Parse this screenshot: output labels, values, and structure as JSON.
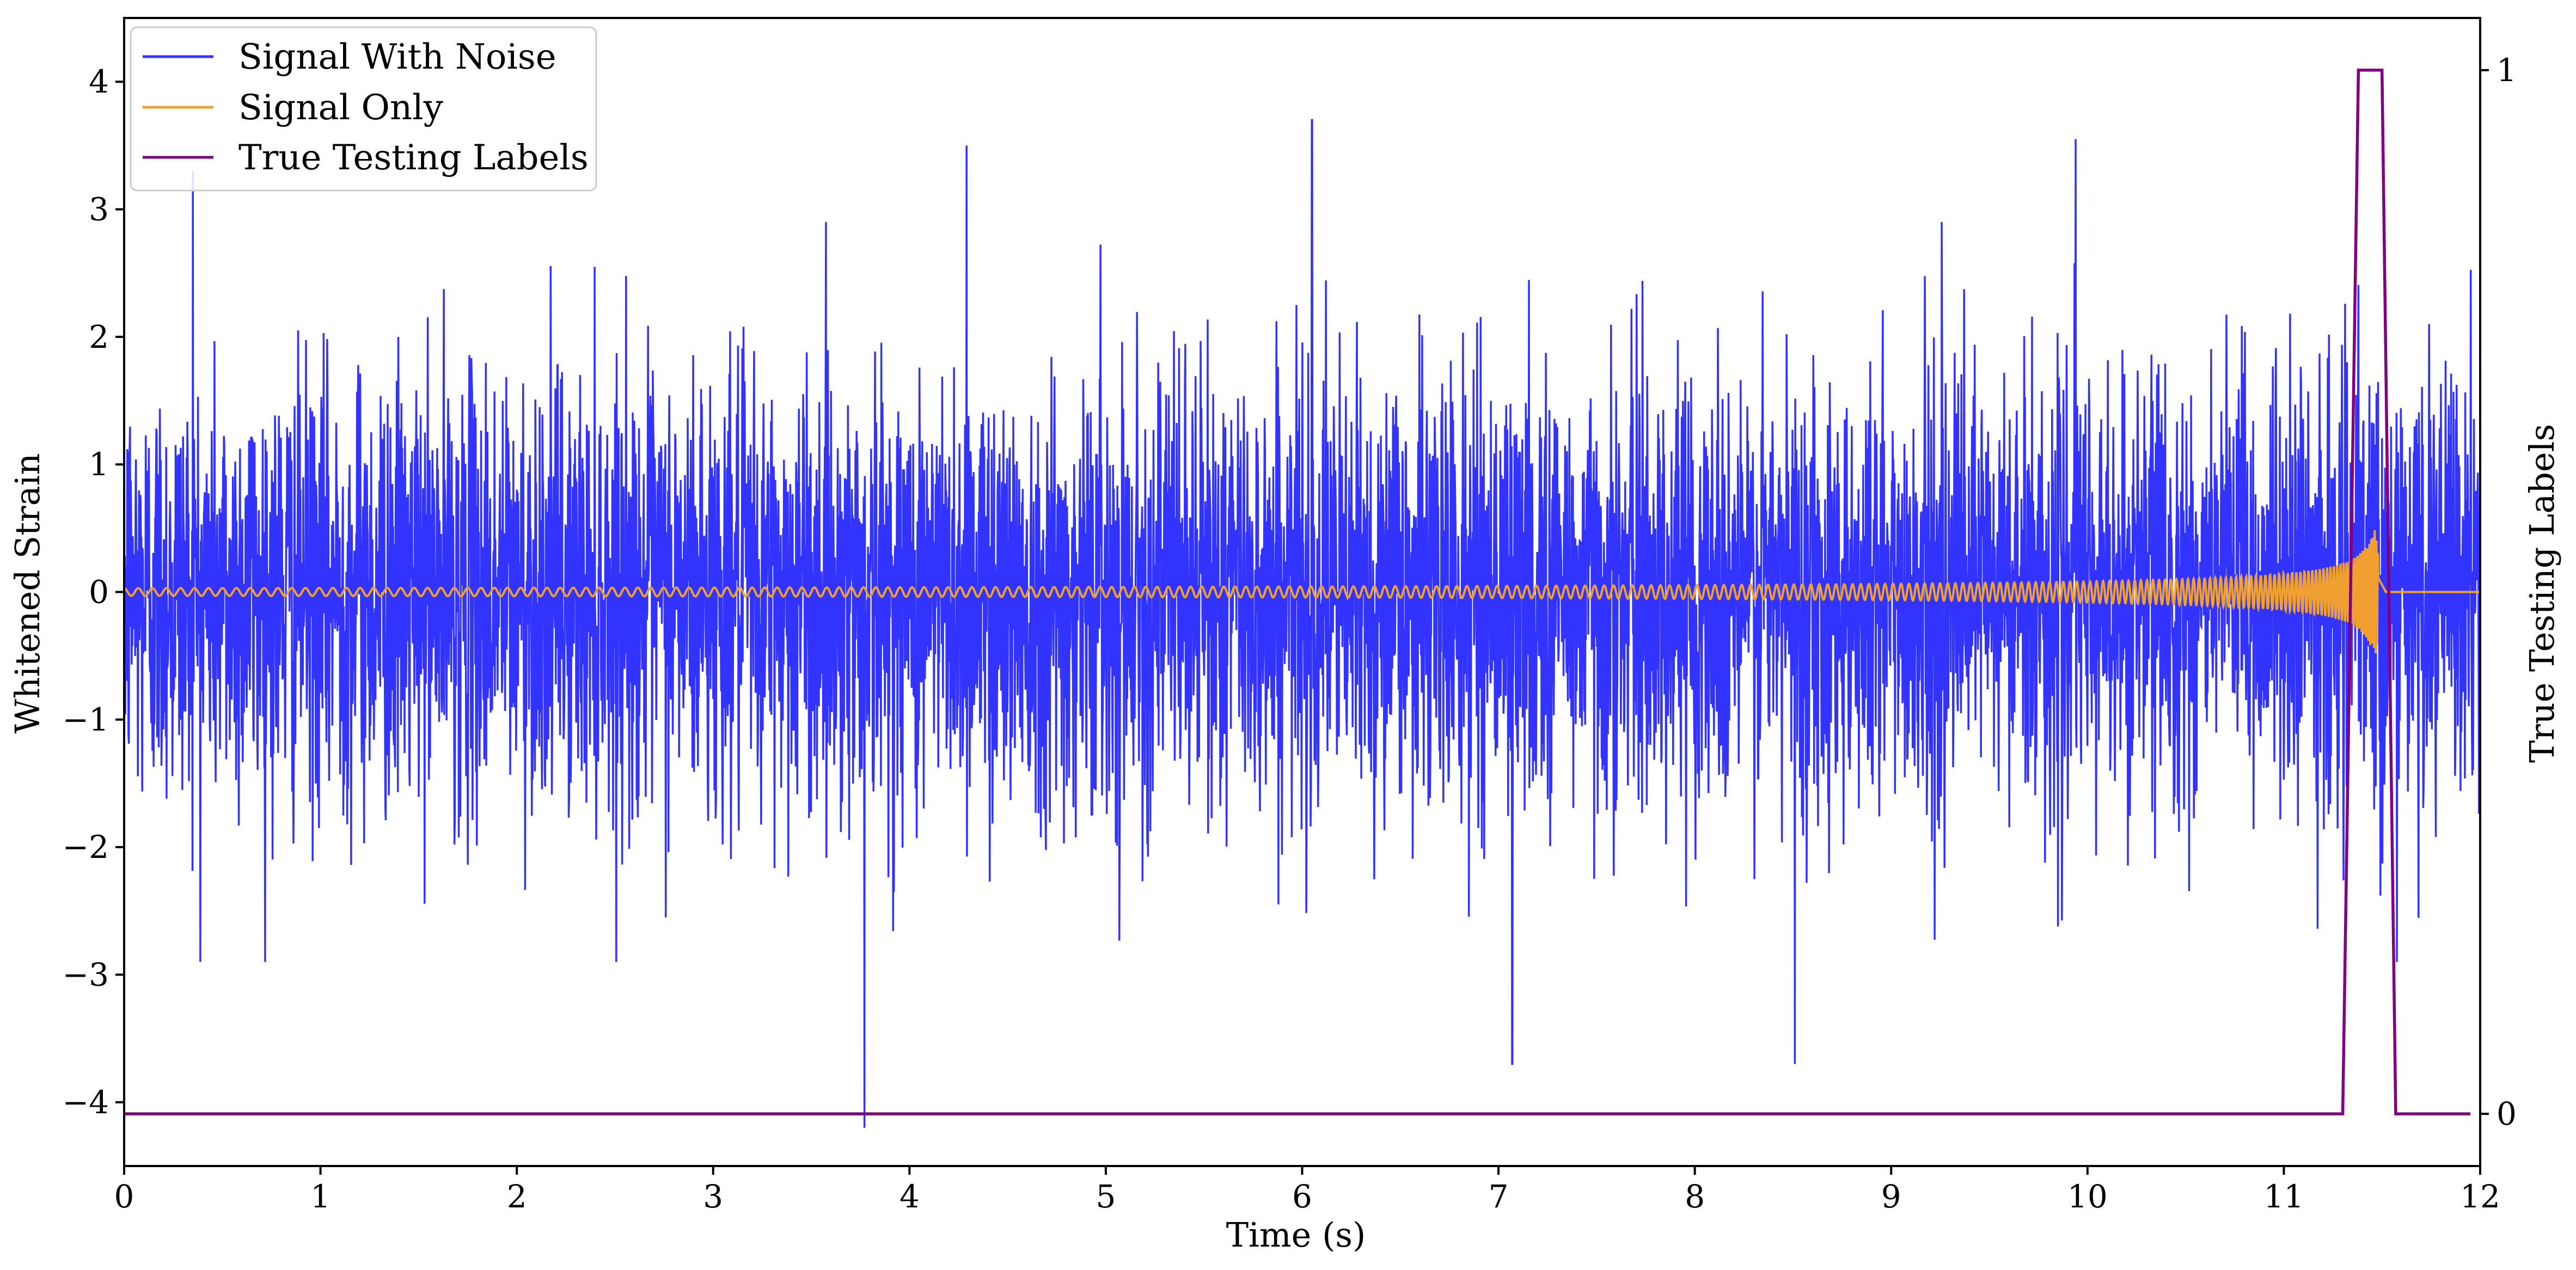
{
  "chart_data": {
    "type": "line",
    "xlabel": "Time (s)",
    "ylabel": "Whitened Strain",
    "y2label": "True Testing Labels",
    "xlim": [
      0,
      12
    ],
    "ylim": [
      -4.5,
      4.5
    ],
    "y2lim": [
      -0.05,
      1.05
    ],
    "xticks": [
      0,
      1,
      2,
      3,
      4,
      5,
      6,
      7,
      8,
      9,
      10,
      11,
      12
    ],
    "xtick_labels": [
      "0",
      "1",
      "2",
      "3",
      "4",
      "5",
      "6",
      "7",
      "8",
      "9",
      "10",
      "11",
      "12"
    ],
    "yticks": [
      -4,
      -3,
      -2,
      -1,
      0,
      1,
      2,
      3,
      4
    ],
    "ytick_labels": [
      "−4",
      "−3",
      "−2",
      "−1",
      "0",
      "1",
      "2",
      "3",
      "4"
    ],
    "y2ticks": [
      0,
      1
    ],
    "y2tick_labels": [
      "0",
      "1"
    ],
    "grid": false,
    "legend_position": "top-left",
    "colors": {
      "signal_with_noise": "#3333ff",
      "signal_only": "#f0a030",
      "true_testing_labels": "#800080"
    },
    "series": [
      {
        "name": "Signal With Noise",
        "axis": "left",
        "color": "#3333ff",
        "description_of_shape": "dense noise roughly within ±2.5",
        "notable_peaks": [
          {
            "x": 0.35,
            "y": 3.3
          },
          {
            "x": 3.77,
            "y": -4.2
          },
          {
            "x": 4.29,
            "y": 3.5
          },
          {
            "x": 6.05,
            "y": 3.7
          },
          {
            "x": 7.07,
            "y": -3.7
          },
          {
            "x": 8.51,
            "y": -3.7
          },
          {
            "x": 9.94,
            "y": 3.55
          }
        ]
      },
      {
        "name": "Signal Only",
        "axis": "left",
        "color": "#f0a030",
        "chirp_start_amplitude": 0.03,
        "chirp_peak_time": 11.46,
        "chirp_peak_amplitude": 0.55,
        "chirp_end_time": 11.52
      },
      {
        "name": "True Testing Labels",
        "axis": "right",
        "color": "#800080",
        "x": [
          0,
          11.3,
          11.38,
          11.5,
          11.57,
          11.95
        ],
        "y": [
          0,
          0,
          1,
          1,
          0,
          0
        ]
      }
    ]
  }
}
